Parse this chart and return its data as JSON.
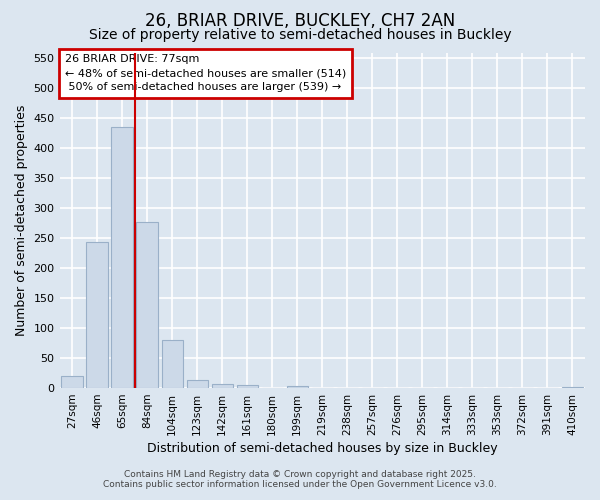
{
  "title": "26, BRIAR DRIVE, BUCKLEY, CH7 2AN",
  "subtitle": "Size of property relative to semi-detached houses in Buckley",
  "xlabel": "Distribution of semi-detached houses by size in Buckley",
  "ylabel": "Number of semi-detached properties",
  "footer_line1": "Contains HM Land Registry data © Crown copyright and database right 2025.",
  "footer_line2": "Contains public sector information licensed under the Open Government Licence v3.0.",
  "categories": [
    "27sqm",
    "46sqm",
    "65sqm",
    "84sqm",
    "104sqm",
    "123sqm",
    "142sqm",
    "161sqm",
    "180sqm",
    "199sqm",
    "219sqm",
    "238sqm",
    "257sqm",
    "276sqm",
    "295sqm",
    "314sqm",
    "333sqm",
    "353sqm",
    "372sqm",
    "391sqm",
    "410sqm"
  ],
  "values": [
    20,
    243,
    435,
    277,
    81,
    13,
    7,
    5,
    0,
    3,
    0,
    0,
    0,
    0,
    0,
    0,
    0,
    0,
    0,
    0,
    2
  ],
  "bar_color": "#ccd9e8",
  "bar_edge_color": "#9ab0c8",
  "vline_x": 2.5,
  "vline_color": "#cc0000",
  "annotation_title": "26 BRIAR DRIVE: 77sqm",
  "annotation_line1": "← 48% of semi-detached houses are smaller (514)",
  "annotation_line2": " 50% of semi-detached houses are larger (539) →",
  "annotation_box_facecolor": "white",
  "annotation_box_edgecolor": "#cc0000",
  "ylim": [
    0,
    560
  ],
  "yticks": [
    0,
    50,
    100,
    150,
    200,
    250,
    300,
    350,
    400,
    450,
    500,
    550
  ],
  "bg_color": "#dce6f0",
  "grid_color": "white",
  "title_fontsize": 12,
  "subtitle_fontsize": 10,
  "tick_fontsize": 8,
  "axis_label_fontsize": 9
}
